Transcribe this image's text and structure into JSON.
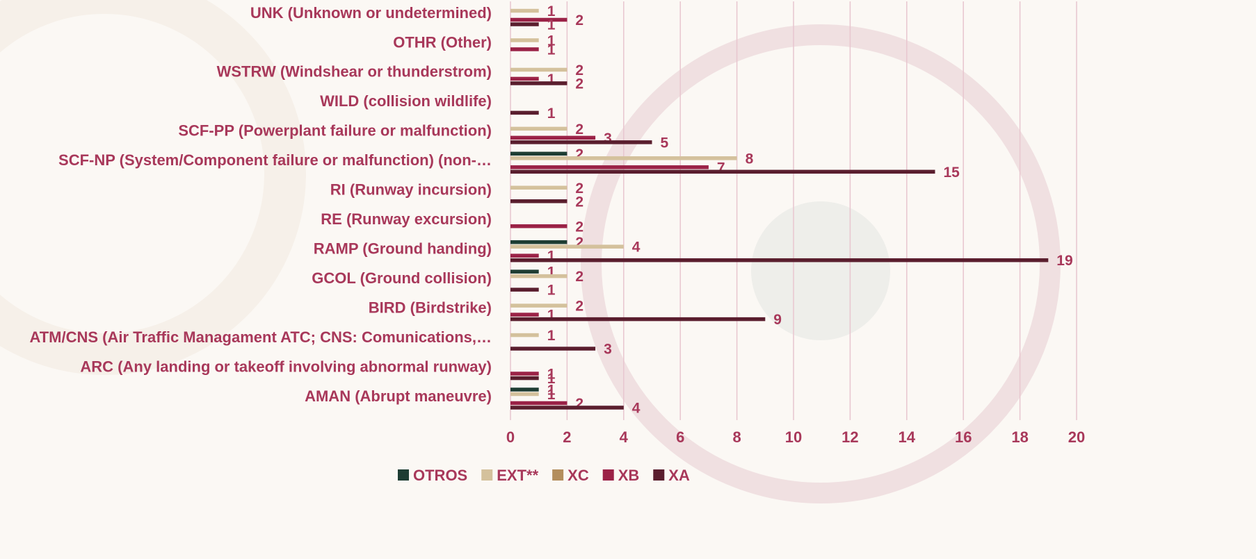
{
  "chart_data": {
    "type": "bar",
    "orientation": "horizontal",
    "categories": [
      "UNK (Unknown or undetermined)",
      "OTHR (Other)",
      "WSTRW (Windshear or thunderstrom)",
      "WILD (collision wildlife)",
      "SCF-PP (Powerplant failure or malfunction)",
      "SCF-NP (System/Component failure or malfunction) (non-…",
      "RI (Runway incursion)",
      "RE (Runway excursion)",
      "RAMP (Ground handing)",
      "GCOL (Ground collision)",
      "BIRD (Birdstrike)",
      "ATM/CNS (Air Traffic Managament ATC; CNS: Comunications,…",
      "ARC (Any landing or takeoff involving abnormal runway)",
      "AMAN (Abrupt maneuvre)"
    ],
    "series": [
      {
        "name": "OTROS",
        "color": "#1e3d33",
        "values": [
          null,
          null,
          null,
          null,
          null,
          2,
          null,
          null,
          2,
          1,
          null,
          null,
          null,
          1
        ]
      },
      {
        "name": "EXT**",
        "color": "#d4c19c",
        "values": [
          1,
          1,
          2,
          null,
          2,
          8,
          2,
          null,
          4,
          2,
          2,
          1,
          null,
          1
        ]
      },
      {
        "name": "XC",
        "color": "#b38e5d",
        "values": [
          null,
          null,
          null,
          null,
          null,
          null,
          null,
          null,
          null,
          null,
          null,
          null,
          null,
          null
        ]
      },
      {
        "name": "XB",
        "color": "#9b2247",
        "values": [
          2,
          1,
          1,
          null,
          3,
          7,
          null,
          2,
          1,
          null,
          1,
          null,
          1,
          2
        ]
      },
      {
        "name": "XA",
        "color": "#5a1e2e",
        "values": [
          1,
          null,
          2,
          1,
          5,
          15,
          2,
          null,
          19,
          1,
          9,
          3,
          1,
          4
        ]
      }
    ],
    "xlim": [
      0,
      20
    ],
    "xticks": [
      0,
      2,
      4,
      6,
      8,
      10,
      12,
      14,
      16,
      18,
      20
    ],
    "grid": true,
    "legend": "bottom"
  }
}
